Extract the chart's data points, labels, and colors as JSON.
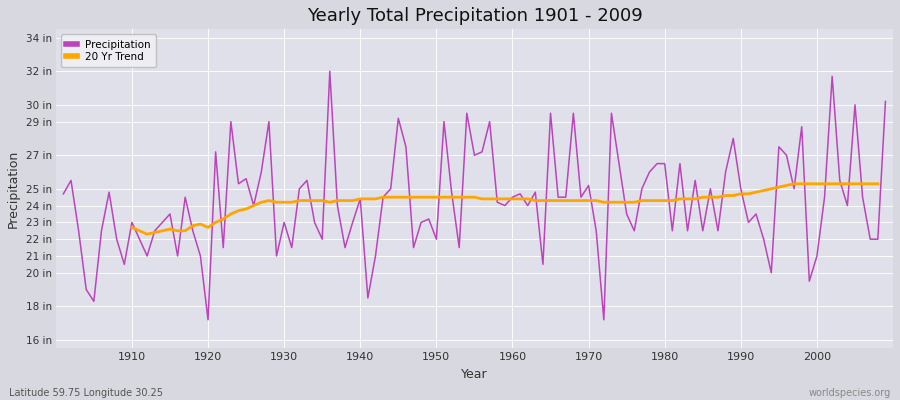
{
  "title": "Yearly Total Precipitation 1901 - 2009",
  "xlabel": "Year",
  "ylabel": "Precipitation",
  "subtitle": "Latitude 59.75 Longitude 30.25",
  "watermark": "worldspecies.org",
  "precip_color": "#bb44bb",
  "trend_color": "#ffa500",
  "fig_bg_color": "#d8d8e0",
  "plot_bg_color": "#e0e0ea",
  "years": [
    1901,
    1902,
    1903,
    1904,
    1905,
    1906,
    1907,
    1908,
    1909,
    1910,
    1911,
    1912,
    1913,
    1914,
    1915,
    1916,
    1917,
    1918,
    1919,
    1920,
    1921,
    1922,
    1923,
    1924,
    1925,
    1926,
    1927,
    1928,
    1929,
    1930,
    1931,
    1932,
    1933,
    1934,
    1935,
    1936,
    1937,
    1938,
    1939,
    1940,
    1941,
    1942,
    1943,
    1944,
    1945,
    1946,
    1947,
    1948,
    1949,
    1950,
    1951,
    1952,
    1953,
    1954,
    1955,
    1956,
    1957,
    1958,
    1959,
    1960,
    1961,
    1962,
    1963,
    1964,
    1965,
    1966,
    1967,
    1968,
    1969,
    1970,
    1971,
    1972,
    1973,
    1974,
    1975,
    1976,
    1977,
    1978,
    1979,
    1980,
    1981,
    1982,
    1983,
    1984,
    1985,
    1986,
    1987,
    1988,
    1989,
    1990,
    1991,
    1992,
    1993,
    1994,
    1995,
    1996,
    1997,
    1998,
    1999,
    2000,
    2001,
    2002,
    2003,
    2004,
    2005,
    2006,
    2007,
    2008,
    2009
  ],
  "precipitation": [
    24.7,
    25.5,
    22.5,
    19.0,
    18.3,
    22.5,
    24.8,
    22.0,
    20.5,
    23.0,
    22.0,
    21.0,
    22.5,
    23.0,
    23.5,
    21.0,
    24.5,
    22.5,
    21.0,
    17.2,
    27.2,
    21.5,
    29.0,
    25.3,
    25.6,
    24.0,
    26.0,
    29.0,
    21.0,
    23.0,
    21.5,
    25.0,
    25.5,
    23.0,
    22.0,
    32.0,
    24.0,
    21.5,
    23.0,
    24.4,
    18.5,
    21.0,
    24.5,
    25.0,
    29.2,
    27.5,
    21.5,
    23.0,
    23.2,
    22.0,
    29.0,
    24.8,
    21.5,
    29.5,
    27.0,
    27.2,
    29.0,
    24.2,
    24.0,
    24.5,
    24.7,
    24.0,
    24.8,
    20.5,
    29.5,
    24.5,
    24.5,
    29.5,
    24.5,
    25.2,
    22.5,
    17.2,
    29.5,
    26.5,
    23.5,
    22.5,
    25.0,
    26.0,
    26.5,
    26.5,
    22.5,
    26.5,
    22.5,
    25.5,
    22.5,
    25.0,
    22.5,
    26.0,
    28.0,
    25.0,
    23.0,
    23.5,
    22.0,
    20.0,
    27.5,
    27.0,
    25.0,
    28.7,
    19.5,
    21.0,
    24.5,
    31.7,
    25.5,
    24.0,
    30.0,
    24.5,
    22.0,
    22.0,
    30.2
  ],
  "trend": [
    null,
    null,
    null,
    null,
    null,
    null,
    null,
    null,
    null,
    22.7,
    22.5,
    22.3,
    22.4,
    22.5,
    22.6,
    22.5,
    22.5,
    22.8,
    22.9,
    22.7,
    23.0,
    23.2,
    23.5,
    23.7,
    23.8,
    24.0,
    24.2,
    24.3,
    24.2,
    24.2,
    24.2,
    24.3,
    24.3,
    24.3,
    24.3,
    24.2,
    24.3,
    24.3,
    24.3,
    24.4,
    24.4,
    24.4,
    24.5,
    24.5,
    24.5,
    24.5,
    24.5,
    24.5,
    24.5,
    24.5,
    24.5,
    24.5,
    24.5,
    24.5,
    24.5,
    24.4,
    24.4,
    24.4,
    24.4,
    24.4,
    24.4,
    24.4,
    24.3,
    24.3,
    24.3,
    24.3,
    24.3,
    24.3,
    24.3,
    24.3,
    24.3,
    24.2,
    24.2,
    24.2,
    24.2,
    24.2,
    24.3,
    24.3,
    24.3,
    24.3,
    24.3,
    24.4,
    24.4,
    24.4,
    24.5,
    24.5,
    24.5,
    24.6,
    24.6,
    24.7,
    24.7,
    24.8,
    24.9,
    25.0,
    25.1,
    25.2,
    25.3,
    25.3,
    25.3,
    25.3,
    25.3,
    25.3,
    25.3,
    25.3,
    25.3,
    25.3,
    25.3,
    25.3
  ],
  "yticks": [
    16,
    18,
    20,
    21,
    22,
    23,
    24,
    25,
    27,
    29,
    30,
    32,
    34
  ],
  "ylim": [
    15.5,
    34.5
  ],
  "xlim": [
    1900,
    2010
  ],
  "xticks": [
    1910,
    1920,
    1930,
    1940,
    1950,
    1960,
    1970,
    1980,
    1990,
    2000
  ],
  "grid_color": "#ffffff",
  "grid_alpha": 0.9
}
